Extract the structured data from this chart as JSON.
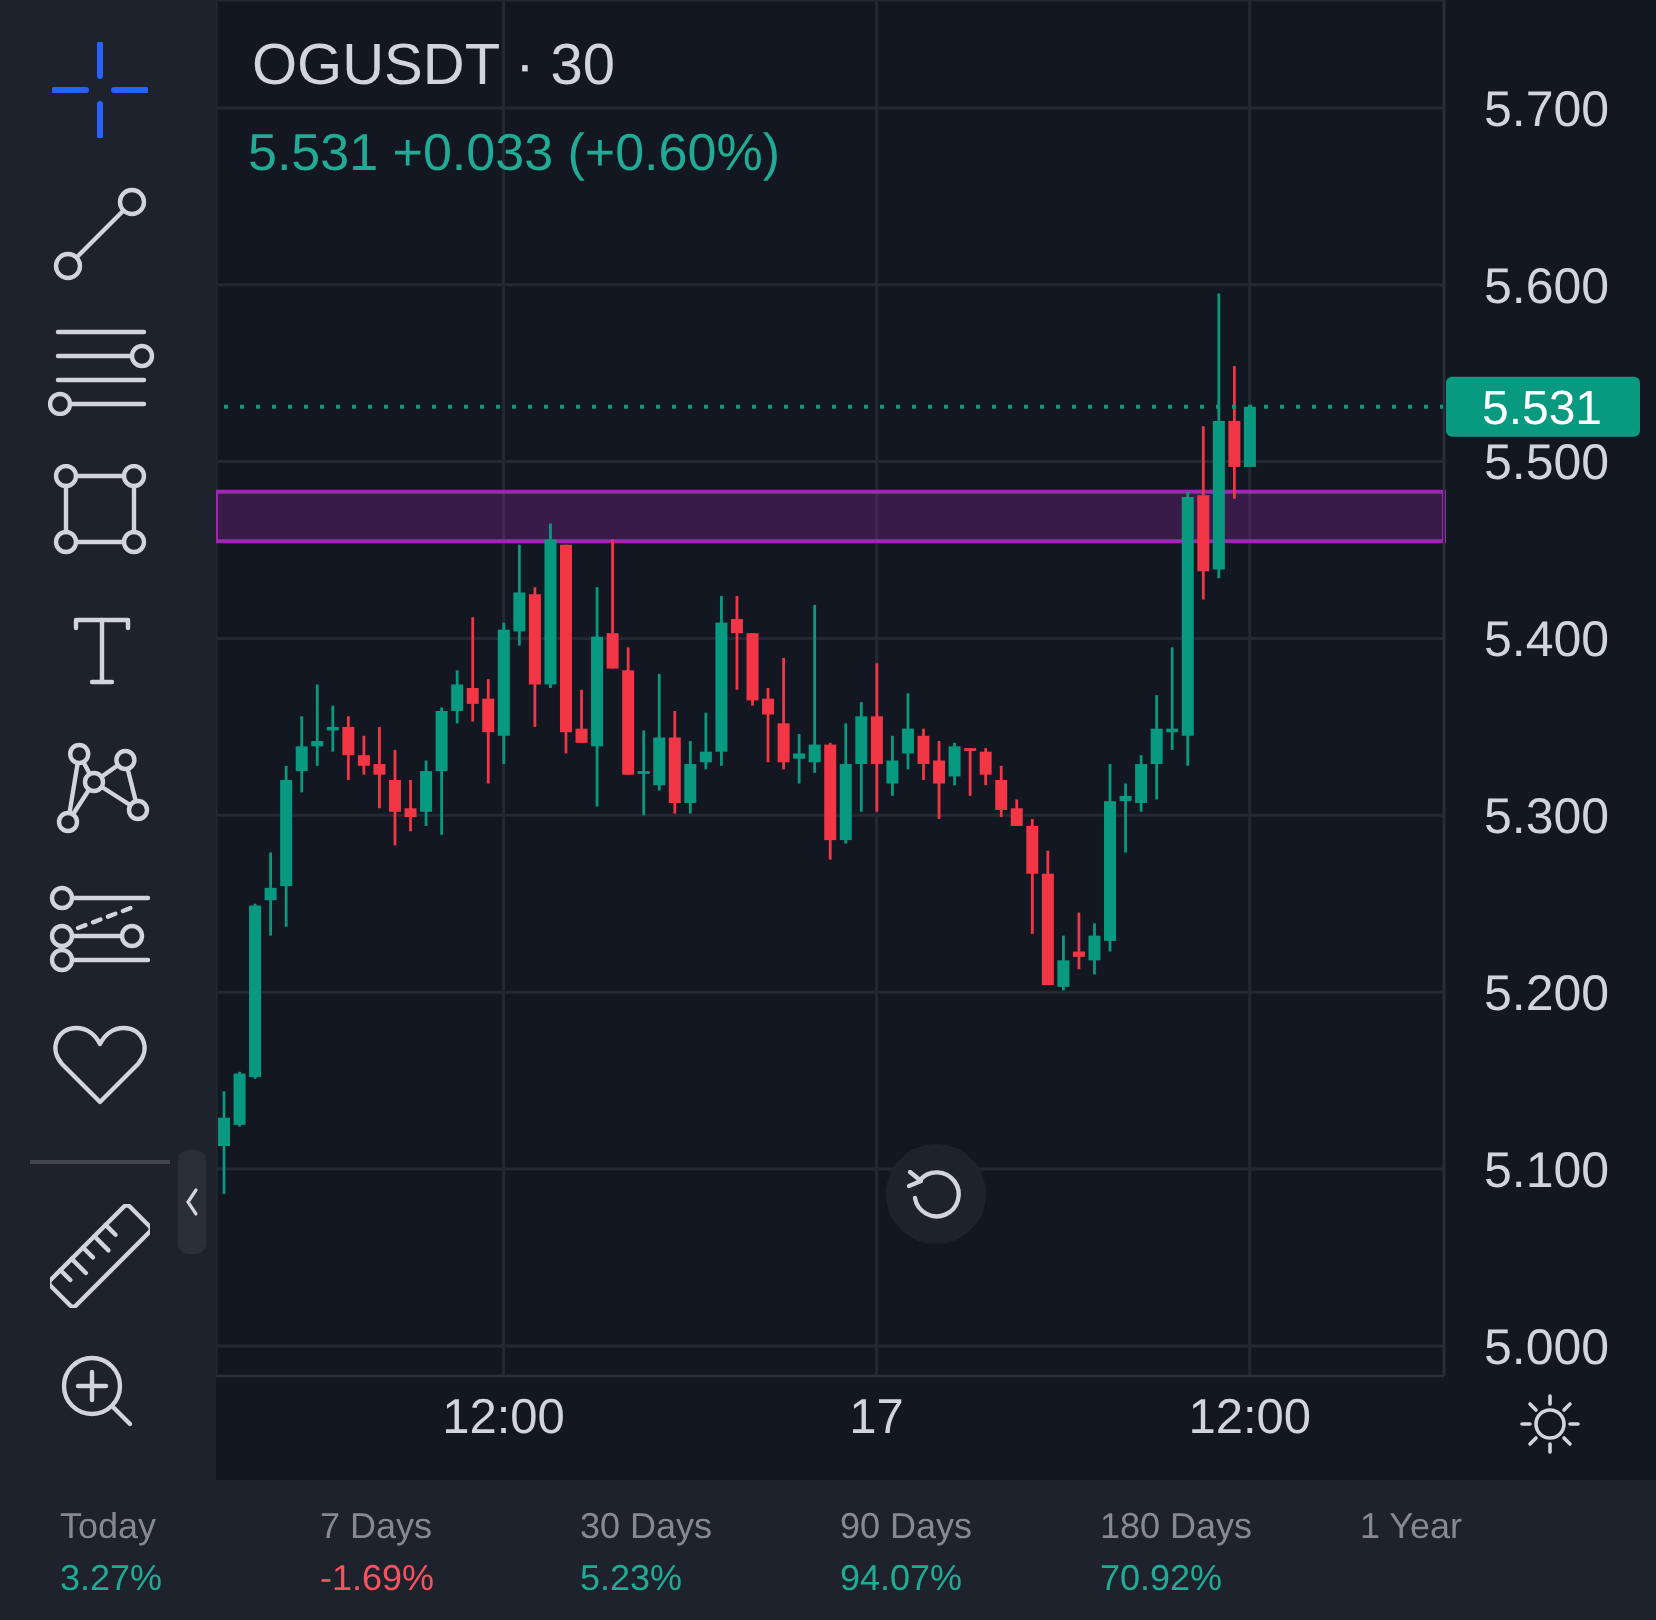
{
  "chart_data": {
    "type": "candlestick",
    "title": "OGUSDT · 30",
    "subtitle": "5.531 +0.033 (+0.60%)",
    "categories": [
      null,
      null,
      null,
      null,
      null,
      null,
      null,
      null,
      null,
      null,
      null,
      null,
      null,
      null,
      null,
      null,
      null,
      null,
      "12:00",
      null,
      null,
      null,
      null,
      null,
      null,
      null,
      null,
      null,
      null,
      null,
      null,
      null,
      null,
      null,
      null,
      null,
      null,
      null,
      null,
      null,
      null,
      null,
      "17",
      null,
      null,
      null,
      null,
      null,
      null,
      null,
      null,
      null,
      null,
      null,
      null,
      null,
      null,
      null,
      null,
      null,
      null,
      null,
      null,
      null,
      null,
      null,
      "12:00",
      null,
      null,
      null,
      null,
      null,
      null,
      null,
      null,
      null,
      null,
      null,
      null
    ],
    "ohlc": [
      [
        5.113,
        5.144,
        5.086,
        5.129
      ],
      [
        5.125,
        5.155,
        5.124,
        5.154
      ],
      [
        5.152,
        5.25,
        5.151,
        5.249
      ],
      [
        5.252,
        5.279,
        5.232,
        5.259
      ],
      [
        5.26,
        5.328,
        5.237,
        5.32
      ],
      [
        5.325,
        5.356,
        5.313,
        5.339
      ],
      [
        5.339,
        5.374,
        5.328,
        5.342
      ],
      [
        5.348,
        5.362,
        5.336,
        5.35
      ],
      [
        5.35,
        5.356,
        5.32,
        5.334
      ],
      [
        5.334,
        5.345,
        5.323,
        5.328
      ],
      [
        5.329,
        5.35,
        5.304,
        5.323
      ],
      [
        5.32,
        5.337,
        5.283,
        5.302
      ],
      [
        5.304,
        5.32,
        5.291,
        5.299
      ],
      [
        5.302,
        5.331,
        5.294,
        5.325
      ],
      [
        5.325,
        5.361,
        5.289,
        5.359
      ],
      [
        5.359,
        5.382,
        5.352,
        5.374
      ],
      [
        5.372,
        5.412,
        5.353,
        5.363
      ],
      [
        5.366,
        5.377,
        5.318,
        5.347
      ],
      [
        5.345,
        5.409,
        5.329,
        5.405
      ],
      [
        5.404,
        5.453,
        5.396,
        5.426
      ],
      [
        5.425,
        5.429,
        5.35,
        5.374
      ],
      [
        5.374,
        5.465,
        5.372,
        5.456
      ],
      [
        5.453,
        5.453,
        5.335,
        5.347
      ],
      [
        5.349,
        5.371,
        5.341,
        5.341
      ],
      [
        5.339,
        5.429,
        5.305,
        5.401
      ],
      [
        5.403,
        5.456,
        5.383,
        5.383
      ],
      [
        5.382,
        5.395,
        5.323,
        5.323
      ],
      [
        5.324,
        5.348,
        5.3,
        5.325
      ],
      [
        5.317,
        5.38,
        5.314,
        5.344
      ],
      [
        5.344,
        5.359,
        5.301,
        5.307
      ],
      [
        5.307,
        5.342,
        5.301,
        5.329
      ],
      [
        5.33,
        5.358,
        5.326,
        5.336
      ],
      [
        5.336,
        5.424,
        5.328,
        5.409
      ],
      [
        5.411,
        5.424,
        5.371,
        5.403
      ],
      [
        5.403,
        5.403,
        5.362,
        5.365
      ],
      [
        5.366,
        5.372,
        5.33,
        5.357
      ],
      [
        5.352,
        5.389,
        5.326,
        5.33
      ],
      [
        5.332,
        5.346,
        5.318,
        5.335
      ],
      [
        5.33,
        5.419,
        5.324,
        5.34
      ],
      [
        5.34,
        5.341,
        5.275,
        5.286
      ],
      [
        5.286,
        5.352,
        5.284,
        5.329
      ],
      [
        5.329,
        5.364,
        5.302,
        5.356
      ],
      [
        5.356,
        5.386,
        5.302,
        5.329
      ],
      [
        5.318,
        5.345,
        5.311,
        5.331
      ],
      [
        5.335,
        5.369,
        5.326,
        5.349
      ],
      [
        5.345,
        5.349,
        5.32,
        5.329
      ],
      [
        5.331,
        5.342,
        5.298,
        5.318
      ],
      [
        5.322,
        5.341,
        5.317,
        5.339
      ],
      [
        5.338,
        5.338,
        5.311,
        5.337
      ],
      [
        5.336,
        5.338,
        5.317,
        5.323
      ],
      [
        5.32,
        5.328,
        5.299,
        5.303
      ],
      [
        5.304,
        5.309,
        5.294,
        5.294
      ],
      [
        5.294,
        5.298,
        5.233,
        5.267
      ],
      [
        5.267,
        5.28,
        5.204,
        5.204
      ],
      [
        5.203,
        5.232,
        5.201,
        5.218
      ],
      [
        5.223,
        5.245,
        5.213,
        5.22
      ],
      [
        5.218,
        5.239,
        5.21,
        5.232
      ],
      [
        5.229,
        5.329,
        5.223,
        5.308
      ],
      [
        5.308,
        5.318,
        5.279,
        5.311
      ],
      [
        5.307,
        5.334,
        5.302,
        5.329
      ],
      [
        5.329,
        5.368,
        5.309,
        5.349
      ],
      [
        5.347,
        5.395,
        5.337,
        5.349
      ],
      [
        5.345,
        5.483,
        5.328,
        5.48
      ],
      [
        5.481,
        5.52,
        5.422,
        5.438
      ],
      [
        5.439,
        5.595,
        5.434,
        5.523
      ],
      [
        5.523,
        5.554,
        5.479,
        5.497
      ],
      [
        5.497,
        5.531,
        5.497,
        5.531
      ],
      null,
      null,
      null,
      null,
      null,
      null,
      null,
      null,
      null,
      null,
      null,
      null
    ],
    "colors": [
      "#089981",
      "#089981",
      "#089981",
      "#089981",
      "#089981",
      "#089981",
      "#089981",
      "#089981",
      "#f23645",
      "#f23645",
      "#f23645",
      "#f23645",
      "#f23645",
      "#089981",
      "#089981",
      "#089981",
      "#f23645",
      "#f23645",
      "#089981",
      "#089981",
      "#f23645",
      "#089981",
      "#f23645",
      "#f23645",
      "#089981",
      "#f23645",
      "#f23645",
      "#089981",
      "#089981",
      "#f23645",
      "#089981",
      "#089981",
      "#089981",
      "#f23645",
      "#f23645",
      "#f23645",
      "#f23645",
      "#089981",
      "#089981",
      "#f23645",
      "#089981",
      "#089981",
      "#f23645",
      "#089981",
      "#089981",
      "#f23645",
      "#f23645",
      "#089981",
      "#f23645",
      "#f23645",
      "#f23645",
      "#f23645",
      "#f23645",
      "#f23645",
      "#089981",
      "#f23645",
      "#089981",
      "#089981",
      "#089981",
      "#089981",
      "#089981",
      "#089981",
      "#089981",
      "#f23645",
      "#089981",
      "#f23645",
      "#089981",
      null,
      null,
      null,
      null,
      null,
      null,
      null,
      null,
      null,
      null,
      null,
      null
    ],
    "ylim": [
      4.983,
      5.761
    ],
    "yticks": [
      {
        "value": 5,
        "label": "5.000"
      },
      {
        "value": 5.1,
        "label": "5.100"
      },
      {
        "value": 5.2,
        "label": "5.200"
      },
      {
        "value": 5.3,
        "label": "5.300"
      },
      {
        "value": 5.4,
        "label": "5.400"
      },
      {
        "value": 5.5,
        "label": "5.500"
      },
      {
        "value": 5.6,
        "label": "5.600"
      },
      {
        "value": 5.7,
        "label": "5.700"
      }
    ],
    "grid": true,
    "ref_lines": [
      {
        "axis": "y",
        "value": 5.531,
        "label": "5.531",
        "color": "#089981",
        "line_style": "dotted"
      }
    ],
    "bands": [
      {
        "axis": "y",
        "from": 5.455,
        "to": 5.483,
        "color": "#9c27b0"
      }
    ],
    "annotations": [
      "Today",
      "7 Days",
      "30 Days",
      "90 Days",
      "180 Days",
      "1 Year",
      "3.27%",
      "-1.69%",
      "5.23%",
      "94.07%",
      "70.92%"
    ]
  }
}
